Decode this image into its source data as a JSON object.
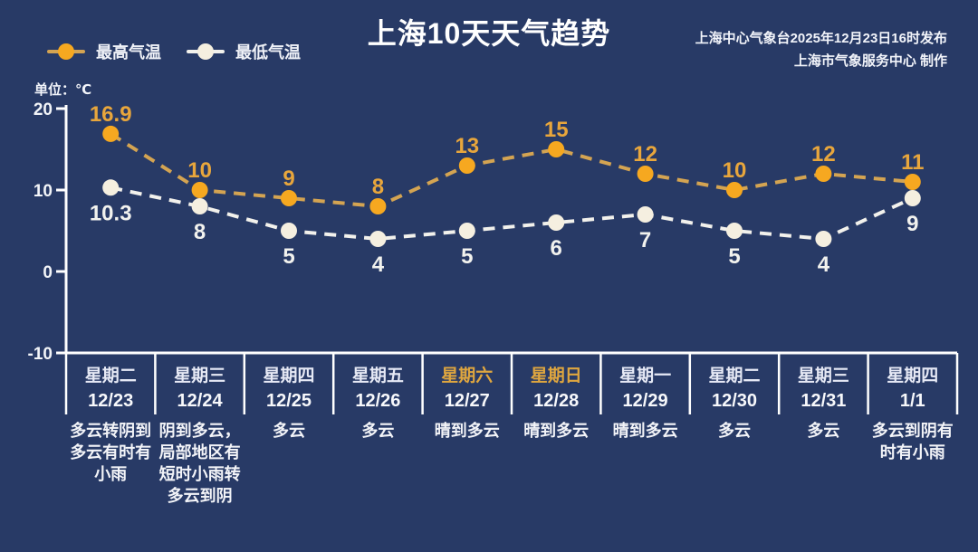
{
  "title": "上海10天天气趋势",
  "source": {
    "line1": "上海中心气象台2025年12月23日16时发布",
    "line2": "上海市气象服务中心 制作"
  },
  "legend": {
    "high": {
      "label": "最高气温"
    },
    "low": {
      "label": "最低气温"
    }
  },
  "unit_label": "单位：℃",
  "colors": {
    "background": "#283a66",
    "axis": "#ffffff",
    "high_marker": "#f6a820",
    "high_line": "#d4a452",
    "high_value_label": "#e8a63c",
    "low_marker": "#f5efe0",
    "low_line": "#f2f1ec",
    "low_value_label": "#f2f2ee",
    "weekday_label": "#e6e9f5",
    "weekend_label": "#dfa63f",
    "date_label": "#f7f8fb",
    "desc_label": "#f3f4f8"
  },
  "chart_data": {
    "type": "line",
    "title": "上海10天天气趋势",
    "ylabel": "单位：℃",
    "yticks": [
      20,
      10,
      0,
      -10
    ],
    "ylim": [
      -10,
      20
    ],
    "grid": false,
    "legend_position": "top-left",
    "categories": [
      {
        "weekday": "星期二",
        "date": "12/23",
        "weekend": false,
        "weather": "多云转阴到\n多云有时有\n小雨"
      },
      {
        "weekday": "星期三",
        "date": "12/24",
        "weekend": false,
        "weather": "阴到多云，\n局部地区有\n短时小雨转\n多云到阴"
      },
      {
        "weekday": "星期四",
        "date": "12/25",
        "weekend": false,
        "weather": "多云"
      },
      {
        "weekday": "星期五",
        "date": "12/26",
        "weekend": false,
        "weather": "多云"
      },
      {
        "weekday": "星期六",
        "date": "12/27",
        "weekend": true,
        "weather": "晴到多云"
      },
      {
        "weekday": "星期日",
        "date": "12/28",
        "weekend": true,
        "weather": "晴到多云"
      },
      {
        "weekday": "星期一",
        "date": "12/29",
        "weekend": false,
        "weather": "晴到多云"
      },
      {
        "weekday": "星期二",
        "date": "12/30",
        "weekend": false,
        "weather": "多云"
      },
      {
        "weekday": "星期三",
        "date": "12/31",
        "weekend": false,
        "weather": "多云"
      },
      {
        "weekday": "星期四",
        "date": "1/1",
        "weekend": false,
        "weather": "多云到阴有\n时有小雨"
      }
    ],
    "series": [
      {
        "name": "最高气温",
        "values": [
          16.9,
          10,
          9,
          8,
          13,
          15,
          12,
          10,
          12,
          11
        ]
      },
      {
        "name": "最低气温",
        "values": [
          10.3,
          8,
          5,
          4,
          5,
          6,
          7,
          5,
          4,
          9
        ]
      }
    ]
  }
}
